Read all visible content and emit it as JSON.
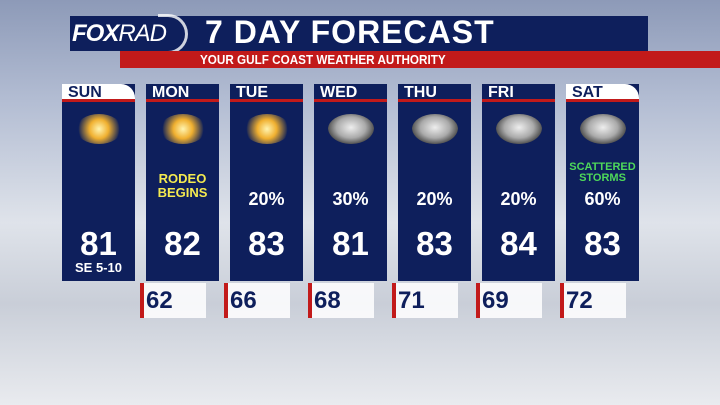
{
  "header": {
    "logo": "FOX",
    "logo_rad": "RAD",
    "title": "7 DAY FORECAST",
    "subtitle": "YOUR GULF COAST WEATHER AUTHORITY"
  },
  "colors": {
    "navy": "#0e1f5c",
    "red": "#c21a1a",
    "note_yellow": "#f4ea50",
    "note_green": "#4ed85a"
  },
  "days": [
    {
      "day": "SUN",
      "icon": "sunny-icon",
      "note": "",
      "pop": "",
      "high": "81",
      "wind": "SE 5-10",
      "low": "62"
    },
    {
      "day": "MON",
      "icon": "mostly-sunny-icon",
      "note": "RODEO BEGINS",
      "pop": "",
      "high": "82",
      "wind": "",
      "low": "66"
    },
    {
      "day": "TUE",
      "icon": "mostly-sunny-icon",
      "note": "",
      "pop": "20%",
      "high": "83",
      "wind": "",
      "low": "68"
    },
    {
      "day": "WED",
      "icon": "partly-cloudy-icon",
      "note": "",
      "pop": "30%",
      "high": "81",
      "wind": "",
      "low": "71"
    },
    {
      "day": "THU",
      "icon": "partly-cloudy-icon",
      "note": "",
      "pop": "20%",
      "high": "83",
      "wind": "",
      "low": "69"
    },
    {
      "day": "FRI",
      "icon": "partly-cloudy-icon",
      "note": "",
      "pop": "20%",
      "high": "84",
      "wind": "",
      "low": "72"
    },
    {
      "day": "SAT",
      "icon": "cloudy-icon",
      "note": "SCATTERED STORMS",
      "pop": "60%",
      "high": "83",
      "wind": "",
      "low": ""
    }
  ]
}
